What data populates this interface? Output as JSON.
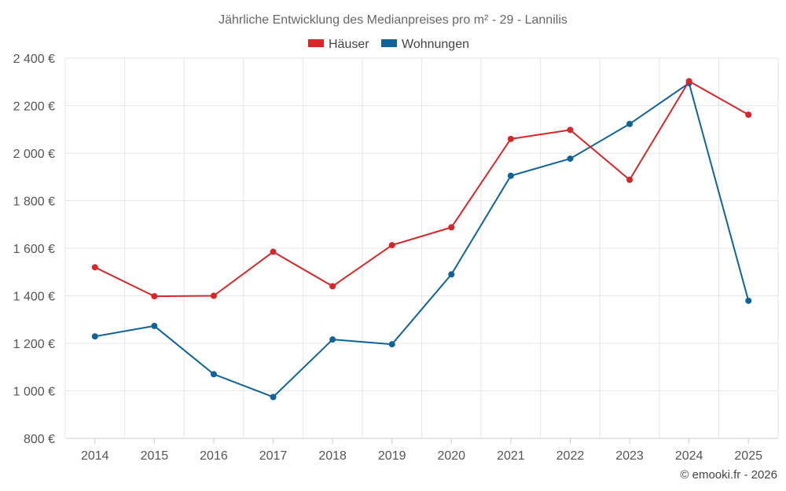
{
  "chart_data": {
    "type": "line",
    "title": "Jährliche Entwicklung des Medianpreises pro m² - 29 - Lannilis",
    "xlabel": "",
    "ylabel": "",
    "categories": [
      "2014",
      "2015",
      "2016",
      "2017",
      "2018",
      "2019",
      "2020",
      "2021",
      "2022",
      "2023",
      "2024",
      "2025"
    ],
    "ylim": [
      800,
      2400
    ],
    "yticks": [
      800,
      1000,
      1200,
      1400,
      1600,
      1800,
      2000,
      2200,
      2400
    ],
    "ytick_labels": [
      "800 €",
      "1 000 €",
      "1 200 €",
      "1 400 €",
      "1 600 €",
      "1 800 €",
      "2 000 €",
      "2 200 €",
      "2 400 €"
    ],
    "grid": true,
    "legend_position": "top-center",
    "series": [
      {
        "name": "Häuser",
        "color": "#d62728",
        "values": [
          1520,
          1398,
          1400,
          1585,
          1440,
          1613,
          1688,
          2060,
          2098,
          1888,
          2303,
          2162
        ]
      },
      {
        "name": "Wohnungen",
        "color": "#0f6398",
        "values": [
          1229,
          1273,
          1070,
          974,
          1216,
          1196,
          1490,
          1905,
          1977,
          2123,
          2295,
          1379
        ]
      }
    ]
  },
  "credit": "© emooki.fr - 2026"
}
